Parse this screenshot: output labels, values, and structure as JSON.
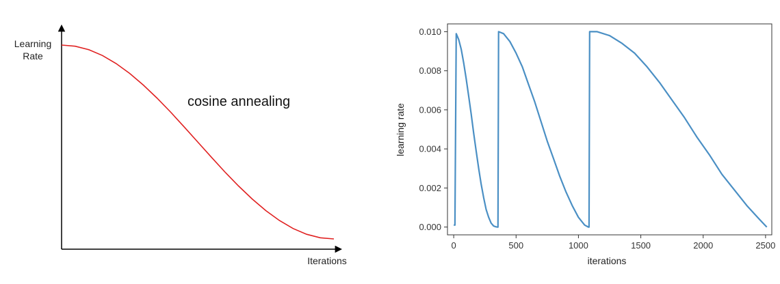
{
  "chart_data": [
    {
      "type": "line",
      "title": "",
      "xlabel": "Iterations",
      "ylabel": "Learning\nRate",
      "annotation": "cosine annealing",
      "colors": {
        "line": "#e02020",
        "axes": "#000000"
      },
      "grid": false,
      "x": [
        0,
        0.05,
        0.1,
        0.15,
        0.2,
        0.25,
        0.3,
        0.35,
        0.4,
        0.45,
        0.5,
        0.55,
        0.6,
        0.65,
        0.7,
        0.75,
        0.8,
        0.85,
        0.9,
        0.95,
        1.0
      ],
      "series": [
        {
          "values": [
            1.0,
            0.994,
            0.976,
            0.946,
            0.905,
            0.854,
            0.794,
            0.727,
            0.655,
            0.578,
            0.5,
            0.422,
            0.345,
            0.273,
            0.206,
            0.146,
            0.095,
            0.054,
            0.024,
            0.006,
            0.0
          ]
        }
      ]
    },
    {
      "type": "line",
      "title": "",
      "xlabel": "iterations",
      "ylabel": "learning rate",
      "xlim": [
        -50,
        2550
      ],
      "ylim": [
        -0.0004,
        0.0104
      ],
      "xticks": [
        0,
        500,
        1000,
        1500,
        2000,
        2500
      ],
      "xtick_labels": [
        "0",
        "500",
        "1000",
        "1500",
        "2000",
        "2500"
      ],
      "yticks": [
        0.0,
        0.002,
        0.004,
        0.006,
        0.008,
        0.01
      ],
      "ytick_labels": [
        "0.000",
        "0.002",
        "0.004",
        "0.006",
        "0.008",
        "0.010"
      ],
      "grid": false,
      "colors": {
        "line": "#4a8fc4",
        "axes": "#333333"
      },
      "series": [
        {
          "segments": [
            {
              "x": [
                0,
                10,
                20,
                40,
                60,
                80,
                100,
                120,
                140,
                160,
                180,
                200,
                220,
                240,
                260,
                280,
                300,
                320,
                340,
                350
              ],
              "values": [
                0.0001,
                0.0001,
                0.0099,
                0.0096,
                0.0091,
                0.0084,
                0.0076,
                0.0067,
                0.0058,
                0.0048,
                0.0039,
                0.003,
                0.0022,
                0.0015,
                0.0009,
                0.0005,
                0.0002,
                5e-05,
                1e-05,
                0.0
              ]
            },
            {
              "x": [
                355,
                360,
                400,
                450,
                500,
                550,
                600,
                650,
                700,
                750,
                800,
                850,
                900,
                950,
                1000,
                1050,
                1080
              ],
              "values": [
                0.0,
                0.01,
                0.0099,
                0.0095,
                0.0089,
                0.0082,
                0.0073,
                0.0064,
                0.0054,
                0.0044,
                0.0035,
                0.0026,
                0.0018,
                0.0011,
                0.0005,
                0.0001,
                0.0
              ]
            },
            {
              "x": [
                1085,
                1090,
                1150,
                1250,
                1350,
                1450,
                1550,
                1650,
                1750,
                1850,
                1950,
                2050,
                2150,
                2250,
                2350,
                2450,
                2510
              ],
              "values": [
                0.0,
                0.01,
                0.01,
                0.0098,
                0.0094,
                0.0089,
                0.0082,
                0.0074,
                0.0065,
                0.0056,
                0.0046,
                0.0037,
                0.0027,
                0.0019,
                0.0011,
                0.0004,
                0.0
              ]
            }
          ]
        }
      ]
    }
  ]
}
